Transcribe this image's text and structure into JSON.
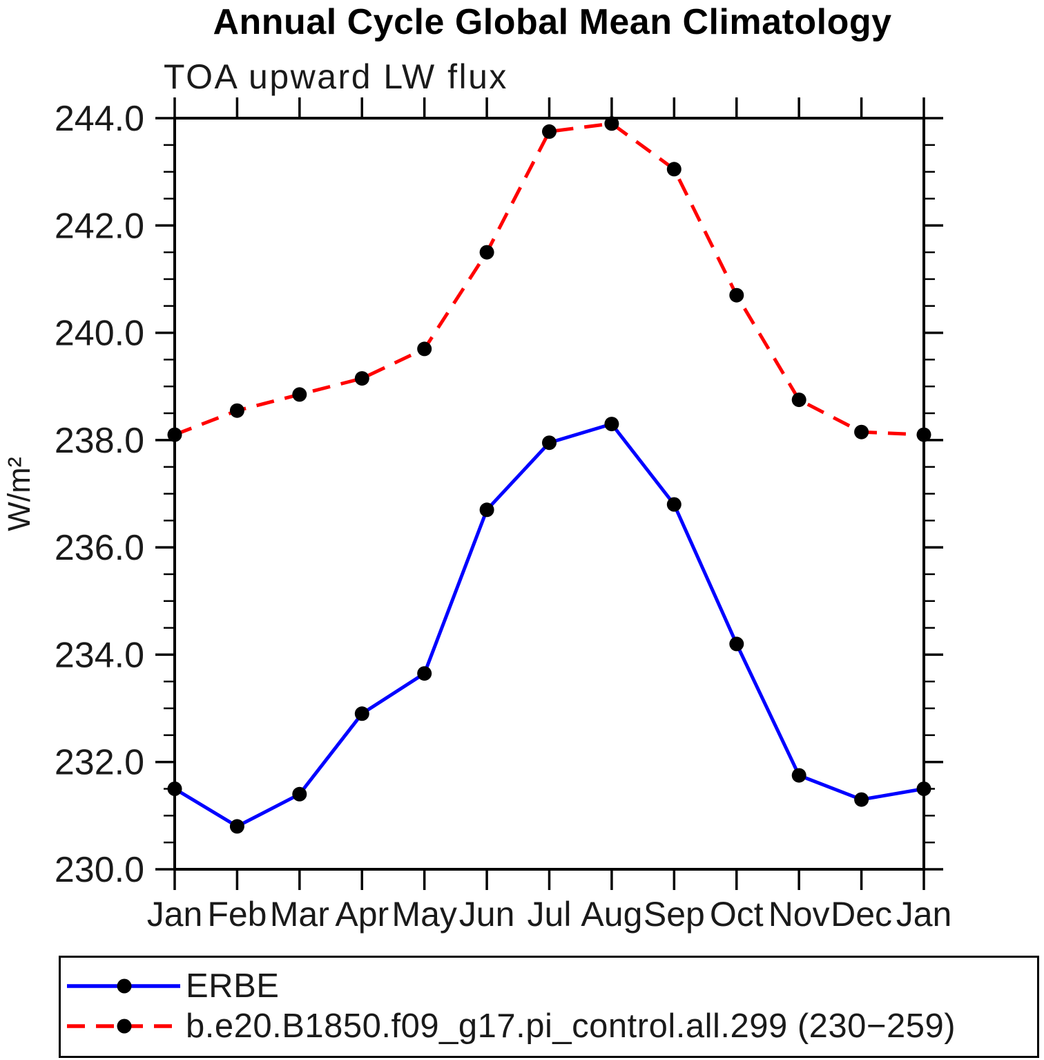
{
  "chart_data": {
    "type": "line",
    "title": "Annual Cycle Global Mean Climatology",
    "subtitle": "TOA upward LW flux",
    "ylabel": "W/m²",
    "categories": [
      "Jan",
      "Feb",
      "Mar",
      "Apr",
      "May",
      "Jun",
      "Jul",
      "Aug",
      "Sep",
      "Oct",
      "Nov",
      "Dec",
      "Jan"
    ],
    "ylim": [
      230.0,
      244.0
    ],
    "ytick_values": [
      230.0,
      232.0,
      234.0,
      236.0,
      238.0,
      240.0,
      242.0,
      244.0
    ],
    "ytick_labels": [
      "230.0",
      "232.0",
      "234.0",
      "236.0",
      "238.0",
      "240.0",
      "242.0",
      "244.0"
    ],
    "ytick_minor_step": 0.5,
    "grid": false,
    "legend_position": "bottom",
    "axis_color": "#000000",
    "marker_color": "#000000",
    "series": [
      {
        "name": "ERBE",
        "color": "#0000ff",
        "line_style": "solid",
        "marker": "circle",
        "values": [
          231.5,
          230.8,
          231.4,
          232.9,
          233.65,
          236.7,
          237.95,
          238.3,
          236.8,
          234.2,
          231.75,
          231.3,
          231.5
        ]
      },
      {
        "name": "b.e20.B1850.f09_g17.pi_control.all.299 (230−259)",
        "color": "#ff0000",
        "line_style": "dashed",
        "marker": "circle",
        "values": [
          238.1,
          238.55,
          238.85,
          239.15,
          239.7,
          241.5,
          243.75,
          243.9,
          243.05,
          240.7,
          238.75,
          238.15,
          238.1
        ]
      }
    ]
  }
}
